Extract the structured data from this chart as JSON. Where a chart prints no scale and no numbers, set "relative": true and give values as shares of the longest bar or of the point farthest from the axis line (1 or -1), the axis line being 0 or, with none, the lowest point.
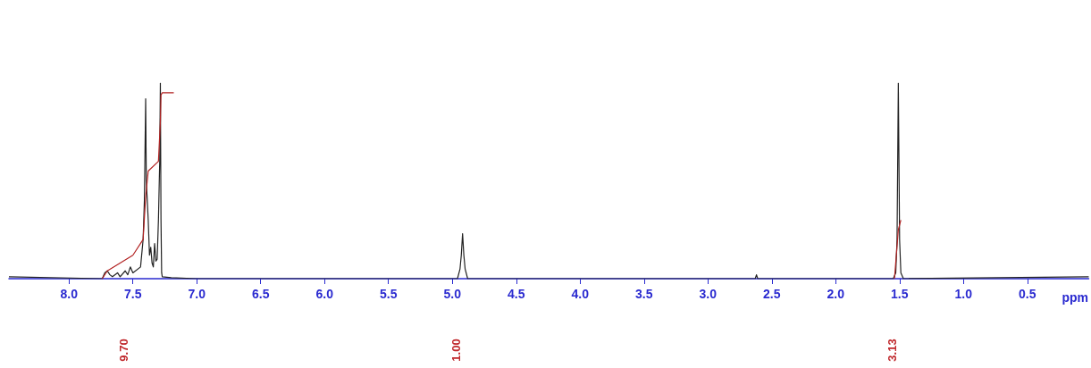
{
  "chart_data": {
    "type": "line",
    "relative": true,
    "xlabel": "ppm",
    "xlim": [
      8.47,
      0.02
    ],
    "xticks": [
      {
        "value": 8,
        "label": "8.0"
      },
      7.5,
      {
        "value": 7,
        "label": "7.0"
      },
      6.5,
      {
        "value": 6,
        "label": "6.0"
      },
      5.5,
      {
        "value": 5,
        "label": "5.0"
      },
      4.5,
      {
        "value": 4,
        "label": "4.0"
      },
      3.5,
      {
        "value": 3,
        "label": "3.0"
      },
      2.5,
      {
        "value": 2,
        "label": "2.0"
      },
      1.5,
      {
        "value": 1,
        "label": "1.0"
      },
      0.5
    ],
    "grid": false,
    "marker": "none",
    "line_style": "solid",
    "tick_labels": "x",
    "series": [
      {
        "color": "#222222",
        "x": [
          8.47,
          7.74,
          7.72,
          7.7,
          7.68,
          7.66,
          7.62,
          7.6,
          7.56,
          7.54,
          7.52,
          7.5,
          7.44,
          7.42,
          7.41,
          7.4,
          7.395,
          7.38,
          7.37,
          7.36,
          7.35,
          7.34,
          7.33,
          7.32,
          7.31,
          7.3,
          7.29,
          7.285,
          7.28,
          7.275,
          7.27,
          7.2,
          7.0,
          4.96,
          4.94,
          4.93,
          4.92,
          4.91,
          4.9,
          4.88,
          2.63,
          2.62,
          2.61,
          1.55,
          1.53,
          1.52,
          1.51,
          1.5,
          1.49,
          1.47,
          0.02
        ],
        "values": [
          0.01,
          0,
          0.03,
          0.04,
          0.02,
          0.01,
          0.03,
          0.01,
          0.04,
          0.02,
          0.06,
          0.03,
          0.06,
          0.2,
          0.4,
          0.92,
          0.5,
          0.3,
          0.12,
          0.16,
          0.08,
          0.06,
          0.18,
          0.09,
          0.1,
          0.3,
          0.6,
          1.0,
          0.3,
          0.03,
          0.01,
          0.005,
          0,
          0,
          0.05,
          0.12,
          0.23,
          0.12,
          0.05,
          0,
          0,
          0.02,
          0,
          0,
          0.03,
          0.2,
          1.0,
          0.2,
          0.03,
          0,
          0.01
        ]
      },
      {
        "color": "#b22222",
        "x": [
          7.74,
          7.7,
          7.6,
          7.5,
          7.42,
          7.4,
          7.38,
          7.3,
          7.285,
          7.28,
          7.27,
          7.18,
          3.0,
          1.54,
          1.51,
          1.49
        ],
        "values": [
          0,
          0.04,
          0.08,
          0.12,
          0.2,
          0.42,
          0.55,
          0.6,
          0.8,
          0.94,
          0.95,
          0.95,
          null,
          0,
          0.25,
          0.3
        ]
      }
    ],
    "annotations": [
      "9.70",
      "1.00",
      "3.13"
    ]
  }
}
